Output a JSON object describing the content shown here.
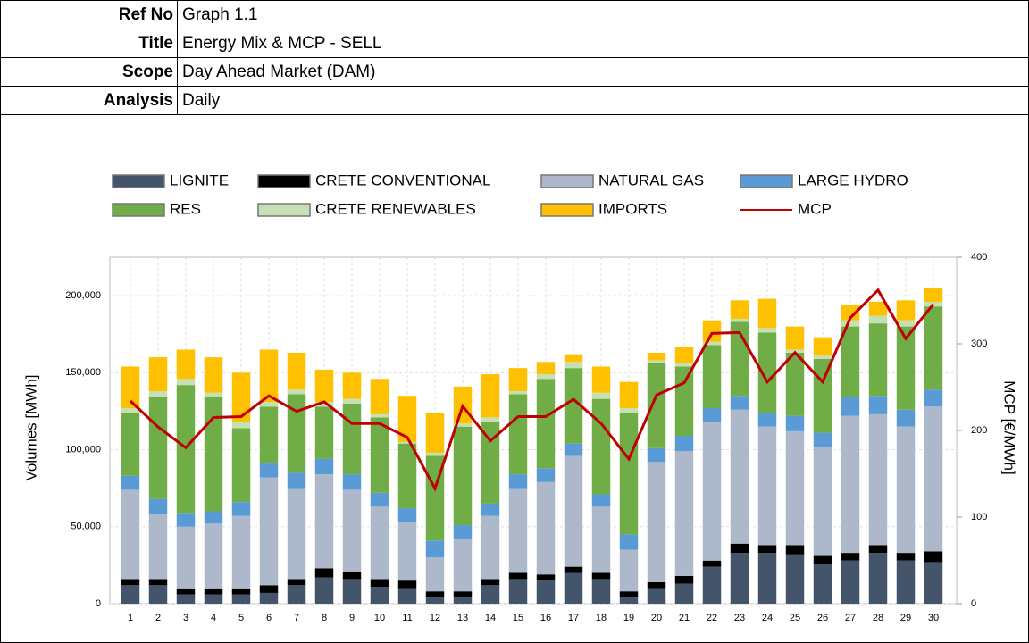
{
  "table": {
    "rows": [
      [
        "Ref No",
        "Graph 1.1"
      ],
      [
        "Title",
        "Energy Mix & MCP - SELL"
      ],
      [
        "Scope",
        "Day Ahead Market (DAM)"
      ],
      [
        "Analysis",
        "Daily"
      ]
    ]
  },
  "chart_data": {
    "type": "bar",
    "stacked": true,
    "grid": true,
    "legend": "top",
    "y_label": "Volumes [MWh]",
    "y2_label": "MCP [€/MWh]",
    "categories": [
      "1",
      "2",
      "3",
      "4",
      "5",
      "6",
      "7",
      "8",
      "9",
      "10",
      "11",
      "12",
      "13",
      "14",
      "15",
      "16",
      "17",
      "18",
      "19",
      "20",
      "21",
      "22",
      "23",
      "24",
      "25",
      "26",
      "27",
      "28",
      "29",
      "30"
    ],
    "ylim": [
      0,
      225000
    ],
    "yticks": [
      0,
      {
        "value": 50000,
        "label": "50,000"
      },
      {
        "value": 100000,
        "label": "100,000"
      },
      {
        "value": 150000,
        "label": "150,000"
      },
      {
        "value": 200000,
        "label": "200,000"
      }
    ],
    "y2lim": [
      0,
      400
    ],
    "y2ticks": [
      0,
      100,
      200,
      300,
      400
    ],
    "series": [
      {
        "name": "LIGNITE",
        "color": "#44546a",
        "values": [
          12000,
          12000,
          6000,
          6000,
          6000,
          7000,
          12000,
          17000,
          16000,
          11000,
          10000,
          4000,
          4000,
          12000,
          16000,
          15000,
          20000,
          16000,
          4000,
          10000,
          13000,
          24000,
          33000,
          33000,
          32000,
          26000,
          28000,
          33000,
          28000,
          27000
        ]
      },
      {
        "name": "CRETE CONVENTIONAL",
        "color": "#000000",
        "values": [
          4000,
          4000,
          4000,
          4000,
          4000,
          5000,
          4000,
          6000,
          5000,
          5000,
          5000,
          4000,
          4000,
          4000,
          4000,
          4000,
          4000,
          4000,
          4000,
          4000,
          5000,
          4000,
          6000,
          5000,
          6000,
          5000,
          5000,
          5000,
          5000,
          7000
        ]
      },
      {
        "name": "NATURAL GAS",
        "color": "#adb9ca",
        "values": [
          58000,
          42000,
          40000,
          42000,
          47000,
          70000,
          59000,
          61000,
          53000,
          47000,
          38000,
          22000,
          34000,
          41000,
          55000,
          60000,
          72000,
          43000,
          27000,
          78000,
          81000,
          90000,
          87000,
          77000,
          74000,
          71000,
          89000,
          85000,
          82000,
          94000
        ]
      },
      {
        "name": "LARGE HYDRO",
        "color": "#5b9bd5",
        "values": [
          9000,
          10000,
          9000,
          8000,
          9000,
          9000,
          10000,
          10000,
          10000,
          9000,
          9000,
          11000,
          9000,
          8000,
          9000,
          9000,
          8000,
          8000,
          10000,
          9000,
          10000,
          9000,
          9000,
          9000,
          10000,
          9000,
          12000,
          12000,
          11000,
          11000
        ]
      },
      {
        "name": "RES",
        "color": "#70ad47",
        "values": [
          41000,
          66000,
          83000,
          74000,
          48000,
          37000,
          51000,
          34000,
          46000,
          49000,
          42000,
          55000,
          64000,
          53000,
          52000,
          58000,
          49000,
          62000,
          79000,
          55000,
          45000,
          41000,
          48000,
          52000,
          41000,
          48000,
          46000,
          47000,
          54000,
          54000
        ]
      },
      {
        "name": "CRETE RENEWABLES",
        "color": "#c5e0b4",
        "values": [
          3000,
          4000,
          4000,
          3000,
          4000,
          3000,
          3000,
          3000,
          3000,
          2000,
          1000,
          2000,
          2000,
          3000,
          2000,
          3000,
          4000,
          4000,
          3000,
          2000,
          2000,
          2000,
          2000,
          3000,
          2000,
          2000,
          4000,
          5000,
          4000,
          3000
        ]
      },
      {
        "name": "IMPORTS",
        "color": "#ffc000",
        "values": [
          27000,
          22000,
          19000,
          23000,
          32000,
          34000,
          24000,
          21000,
          17000,
          23000,
          30000,
          26000,
          24000,
          28000,
          15000,
          8000,
          5000,
          17000,
          17000,
          5000,
          11000,
          14000,
          12000,
          19000,
          15000,
          12000,
          10000,
          9000,
          13000,
          9000
        ]
      },
      {
        "name": "MCP",
        "color": "#c00000",
        "type": "line",
        "axis": "y2",
        "values": [
          234,
          204,
          180,
          215,
          216,
          240,
          222,
          233,
          208,
          208,
          192,
          133,
          228,
          188,
          216,
          216,
          236,
          208,
          167,
          241,
          255,
          312,
          313,
          256,
          290,
          256,
          330,
          362,
          306,
          346
        ]
      }
    ]
  }
}
